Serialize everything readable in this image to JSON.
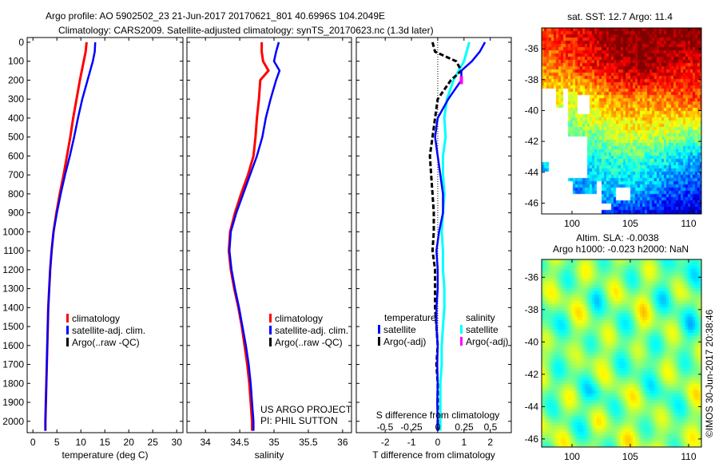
{
  "title": {
    "line1": "Argo profile: AO 5902502_23 21-Jun-2017 20170621_801 40.6996S 104.2049E",
    "line2": "Climatology: CARS2009. Satellite-adjusted climatology: synTS_20170623.nc (1.3d later)"
  },
  "credit": "©IMOS 30-Jun-2017 20:38:46",
  "colors": {
    "climatology": "#ff0000",
    "satellite": "#0000ff",
    "argo": "#000000",
    "sal_satellite": "#00ffff",
    "sal_argo": "#ff00ff"
  },
  "chart_data": [
    {
      "type": "line",
      "id": "temperature",
      "xlabel": "temperature (deg C)",
      "ylabel": "",
      "xlim": [
        -1.2,
        31.3
      ],
      "ylim": [
        2060,
        -25
      ],
      "xticks": [
        "0",
        "5",
        "10",
        "15",
        "20",
        "25",
        "30"
      ],
      "yticks": [
        "0",
        "100",
        "200",
        "300",
        "400",
        "500",
        "600",
        "700",
        "800",
        "900",
        "1000",
        "1100",
        "1200",
        "1300",
        "1400",
        "1500",
        "1600",
        "1700",
        "1800",
        "1900",
        "2000"
      ],
      "legend": {
        "position": "bottom-right",
        "entries": [
          "climatology",
          "satellite-adj. clim.",
          "Argo(..raw -QC)"
        ]
      },
      "depth": [
        0,
        50,
        100,
        200,
        300,
        400,
        500,
        600,
        700,
        800,
        900,
        1000,
        1100,
        1200,
        1300,
        1400,
        1500,
        1600,
        1700,
        1800,
        1900,
        2000,
        2050
      ],
      "series": [
        {
          "name": "climatology",
          "values": [
            11.2,
            11.0,
            10.6,
            9.8,
            9.1,
            8.4,
            7.8,
            7.1,
            6.4,
            5.6,
            4.9,
            4.3,
            3.9,
            3.6,
            3.4,
            3.2,
            3.1,
            3.0,
            2.9,
            2.8,
            2.7,
            2.6,
            2.6
          ]
        },
        {
          "name": "satellite-adj. clim.",
          "values": [
            13.0,
            12.9,
            12.5,
            11.4,
            10.3,
            9.4,
            8.6,
            7.7,
            6.7,
            5.8,
            5.0,
            4.3,
            3.9,
            3.6,
            3.4,
            3.2,
            3.1,
            3.0,
            2.9,
            2.8,
            2.7,
            2.6,
            2.6
          ]
        }
      ]
    },
    {
      "type": "line",
      "id": "salinity",
      "xlabel": "salinity",
      "xlim": [
        33.73,
        36.13
      ],
      "ylim": [
        2060,
        -25
      ],
      "xticks": [
        "34",
        "34.5",
        "35",
        "35.5",
        "36"
      ],
      "legend": {
        "position": "bottom-right",
        "entries": [
          "climatology",
          "satellite-adj. clim.",
          "Argo(..raw -QC)"
        ]
      },
      "annotation": [
        "US ARGO PROJECT",
        "PI: PHIL SUTTON"
      ],
      "depth": [
        0,
        50,
        100,
        150,
        200,
        300,
        400,
        500,
        600,
        700,
        800,
        900,
        1000,
        1100,
        1200,
        1300,
        1400,
        1500,
        1600,
        1700,
        1800,
        1900,
        2000,
        2050
      ],
      "series": [
        {
          "name": "climatology",
          "values": [
            34.82,
            34.82,
            34.84,
            34.92,
            34.8,
            34.78,
            34.75,
            34.73,
            34.7,
            34.62,
            34.52,
            34.43,
            34.36,
            34.34,
            34.37,
            34.42,
            34.48,
            34.53,
            34.57,
            34.61,
            34.64,
            34.66,
            34.68,
            34.68
          ]
        },
        {
          "name": "satellite-adj. clim.",
          "values": [
            35.07,
            35.03,
            35.0,
            35.08,
            35.03,
            34.95,
            34.88,
            34.83,
            34.75,
            34.65,
            34.55,
            34.45,
            34.37,
            34.35,
            34.38,
            34.43,
            34.49,
            34.54,
            34.59,
            34.63,
            34.66,
            34.68,
            34.7,
            34.7
          ]
        }
      ]
    },
    {
      "type": "line",
      "id": "difference",
      "xlabel": "T difference from climatology",
      "xlabel2": "S difference from climatology",
      "xlim": [
        -3.1,
        2.8
      ],
      "ylim": [
        2060,
        -25
      ],
      "xticks": [
        "-2",
        "-1",
        "0",
        "1",
        "2"
      ],
      "xticks2": [
        "-0.5",
        "-0.25",
        "0",
        "0.25",
        "0.5"
      ],
      "legend": {
        "position": "bottom",
        "temperature_title": "temperature",
        "salinity_title": "salinity",
        "entries": [
          "satellite",
          "Argo(-adj)",
          "satellite",
          "Argo(-adj)"
        ]
      },
      "depth": [
        0,
        50,
        100,
        150,
        200,
        300,
        400,
        500,
        600,
        700,
        800,
        900,
        1000,
        1100,
        1200,
        1300,
        1400,
        1500,
        1600,
        1700,
        1800,
        1900,
        2000,
        2050
      ],
      "series": [
        {
          "name": "T satellite",
          "values": [
            1.8,
            1.6,
            1.3,
            0.9,
            0.9,
            0.4,
            0.0,
            -0.1,
            0.0,
            0.1,
            0.2,
            0.2,
            0.05,
            -0.05,
            0.0,
            0.0,
            -0.05,
            -0.05,
            0.0,
            -0.02,
            0.0,
            -0.02,
            0.0,
            0.0
          ]
        },
        {
          "name": "T Argo(-adj)",
          "values": [
            -0.2,
            -0.1,
            0.7,
            0.9,
            0.5,
            0.0,
            -0.1,
            -0.2,
            -0.3,
            -0.25,
            -0.2,
            -0.15,
            -0.15,
            -0.2,
            -0.1,
            -0.1,
            -0.1,
            -0.05,
            0.0,
            -0.05,
            0.0,
            0.0,
            0.0,
            0.0
          ]
        },
        {
          "name": "S satellite",
          "values": [
            1.2,
            1.1,
            1.0,
            0.8,
            0.6,
            0.35,
            0.25,
            0.3,
            0.2,
            0.2,
            0.25,
            0.2,
            0.15,
            0.2,
            0.2,
            0.25,
            0.25,
            0.2,
            0.15,
            0.15,
            0.1,
            0.1,
            0.1,
            0.1
          ]
        },
        {
          "name": "S Argo(-adj)",
          "values": [
            null,
            null,
            null,
            null,
            0.9,
            null,
            null,
            null,
            null,
            null,
            null,
            null,
            null,
            null,
            null,
            null,
            null,
            null,
            null,
            null,
            null,
            null,
            null,
            null
          ]
        }
      ]
    },
    {
      "type": "heatmap",
      "id": "sst-map",
      "title": "sat. SST: 12.7 Argo: 11.4",
      "xlim": [
        97.4,
        111.1
      ],
      "ylim": [
        -46.7,
        -34.65
      ],
      "xticks": [
        "100",
        "105",
        "110"
      ],
      "yticks": [
        "-36",
        "-38",
        "-40",
        "-42",
        "-44",
        "-46"
      ],
      "color_range": [
        8,
        16
      ],
      "lon": [
        98,
        100,
        102,
        104,
        106,
        108,
        110,
        112
      ],
      "lat": [
        -35,
        -37,
        -39,
        -41,
        -43,
        -45,
        -47
      ],
      "values": [
        [
          14.5,
          15,
          15.5,
          16,
          16,
          16,
          16,
          16
        ],
        [
          14,
          14.5,
          15,
          15.5,
          16,
          15.5,
          15,
          15
        ],
        [
          13,
          13,
          13.5,
          14,
          14,
          14,
          14.5,
          14.5
        ],
        [
          12,
          12,
          12.5,
          13,
          13,
          13,
          12.5,
          12.5
        ],
        [
          11,
          11,
          11,
          11.5,
          11.5,
          11,
          10.5,
          10.5
        ],
        [
          10,
          10,
          10.5,
          10.5,
          10.5,
          9.8,
          9.5,
          9.2
        ],
        [
          9,
          9,
          9,
          9,
          9,
          8.5,
          8.5,
          8.5
        ]
      ]
    },
    {
      "type": "heatmap",
      "id": "sla-map",
      "title": "Altim. SLA: -0.0038",
      "subtitle": "Argo h1000: -0.023 h2000: NaN",
      "xlim": [
        97.4,
        111.1
      ],
      "ylim": [
        -46.5,
        -34.9
      ],
      "xticks": [
        "100",
        "105",
        "110"
      ],
      "yticks": [
        "-36",
        "-38",
        "-40",
        "-42",
        "-44",
        "-46"
      ],
      "color_range": [
        -0.3,
        0.3
      ],
      "lon": [
        98,
        100,
        102,
        104,
        106,
        108,
        110,
        112
      ],
      "lat": [
        -35,
        -37,
        -39,
        -41,
        -43,
        -45,
        -47
      ],
      "values": [
        [
          0.02,
          -0.03,
          0.03,
          0.0,
          -0.02,
          0.01,
          -0.06,
          0.0
        ],
        [
          0.0,
          0.04,
          -0.04,
          0.02,
          0.03,
          -0.05,
          0.02,
          -0.02
        ],
        [
          -0.05,
          0.02,
          0.0,
          -0.03,
          0.04,
          0.0,
          -0.06,
          0.03
        ],
        [
          0.03,
          -0.04,
          0.05,
          -0.01,
          -0.05,
          0.02,
          0.01,
          -0.03
        ],
        [
          -0.02,
          0.01,
          -0.06,
          0.03,
          0.0,
          -0.04,
          0.03,
          0.0
        ],
        [
          0.04,
          -0.03,
          0.02,
          0.0,
          0.03,
          -0.02,
          0.0,
          0.05
        ],
        [
          0.01,
          0.03,
          -0.02,
          0.05,
          0.02,
          0.06,
          0.01,
          0.03
        ]
      ]
    }
  ]
}
